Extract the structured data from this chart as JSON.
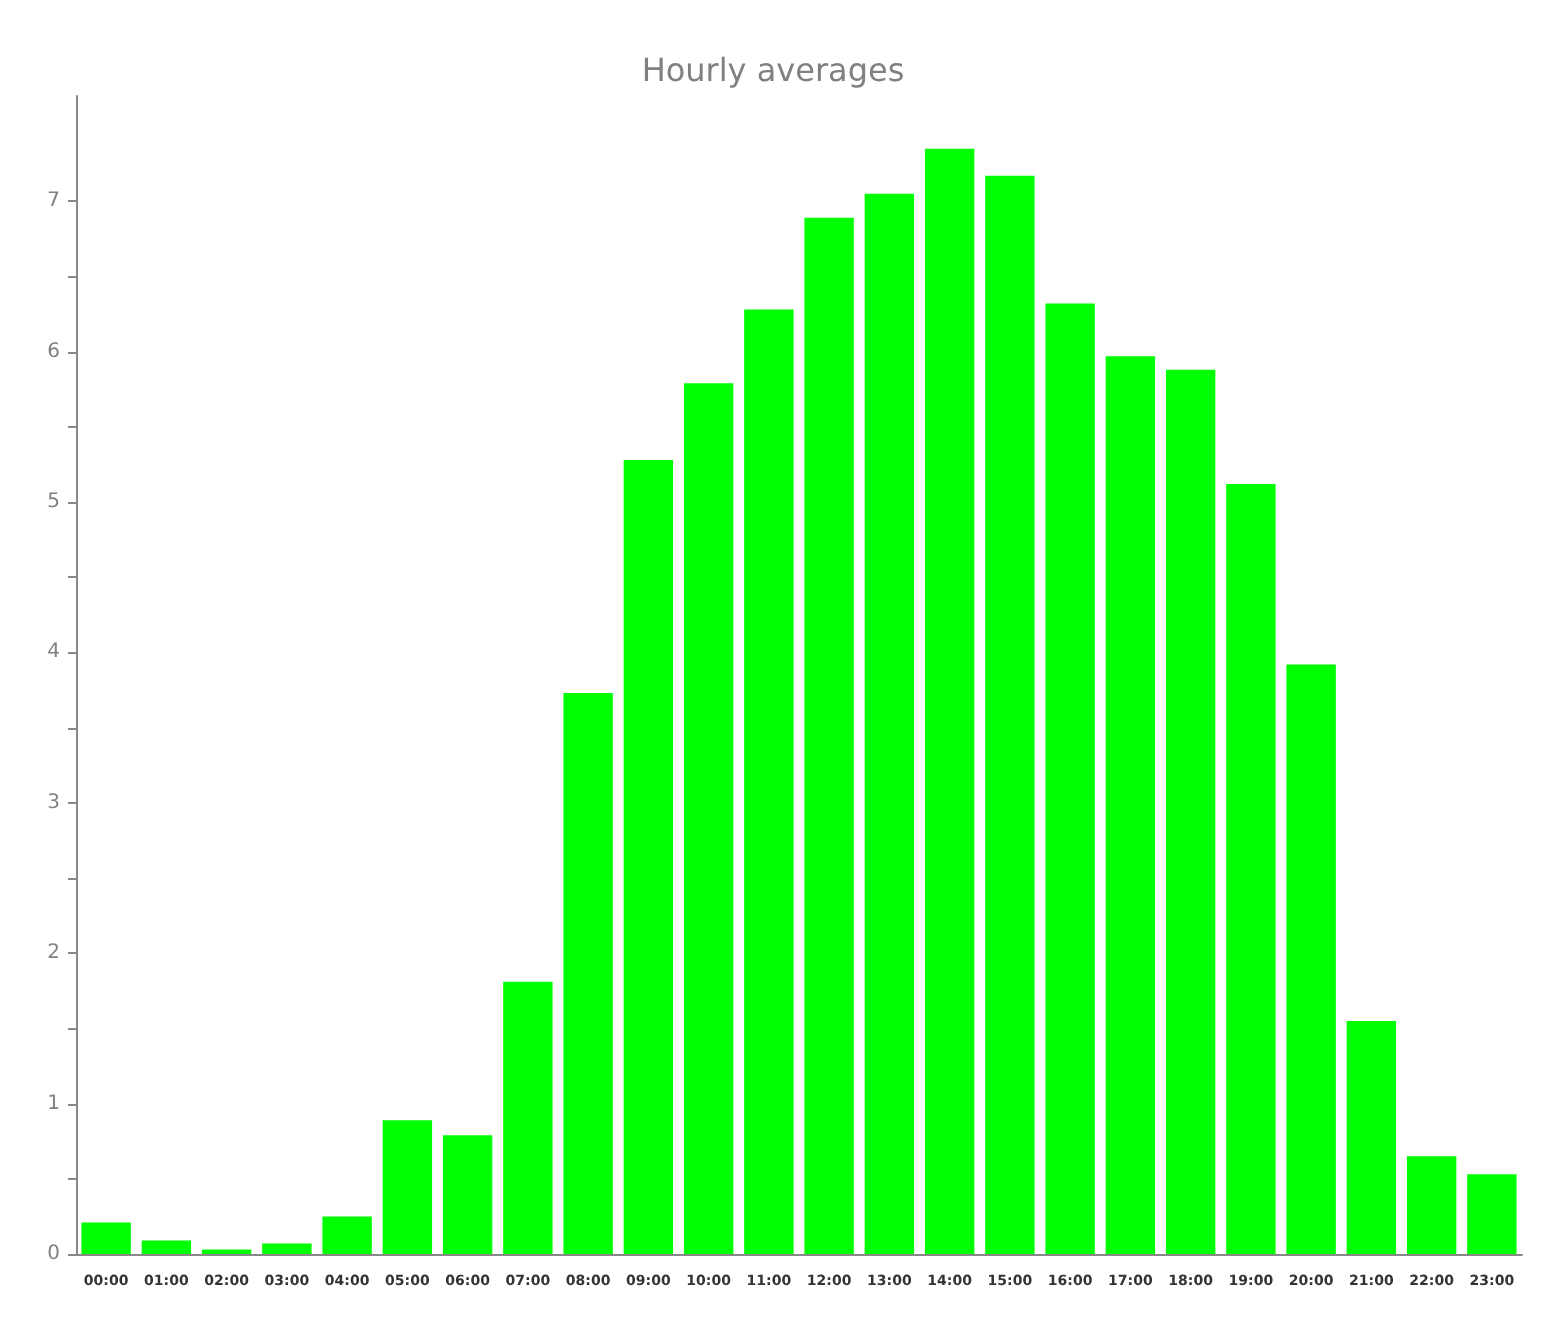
{
  "chart_data": {
    "type": "bar",
    "title": "Hourly averages",
    "categories": [
      "00:00",
      "01:00",
      "02:00",
      "03:00",
      "04:00",
      "05:00",
      "06:00",
      "07:00",
      "08:00",
      "09:00",
      "10:00",
      "11:00",
      "12:00",
      "13:00",
      "14:00",
      "15:00",
      "16:00",
      "17:00",
      "18:00",
      "19:00",
      "20:00",
      "21:00",
      "22:00",
      "23:00"
    ],
    "values": [
      0.21,
      0.09,
      0.03,
      0.07,
      0.25,
      0.89,
      0.79,
      1.81,
      3.73,
      5.28,
      5.79,
      6.28,
      6.89,
      7.05,
      7.35,
      7.17,
      6.32,
      5.97,
      5.88,
      5.12,
      3.92,
      1.55,
      0.65,
      0.53
    ],
    "color": "#00ff00",
    "ylim": [
      0,
      7.7
    ],
    "yticks": [
      0,
      1,
      2,
      3,
      4,
      5,
      6,
      7
    ],
    "grid": false
  }
}
